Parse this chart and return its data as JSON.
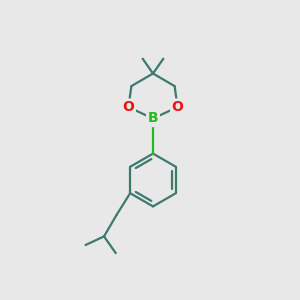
{
  "background_color": "#e8e8e8",
  "bond_color": "#3d7a6e",
  "oxygen_color": "#ee1111",
  "boron_color": "#22bb22",
  "bond_width": 1.6,
  "font_size_atom": 10,
  "figsize": [
    3.0,
    3.0
  ],
  "dpi": 100,
  "xlim": [
    0,
    10
  ],
  "ylim": [
    0,
    10
  ]
}
